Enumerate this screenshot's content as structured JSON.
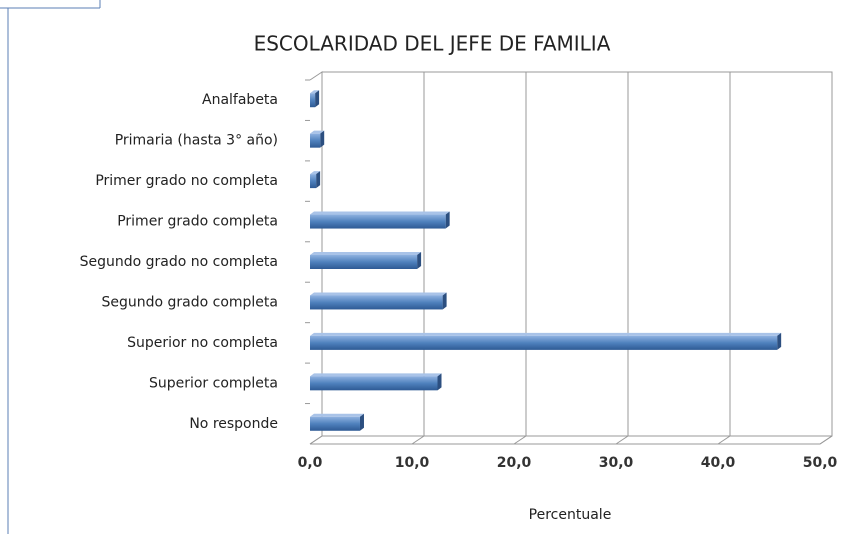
{
  "chart_data": {
    "type": "bar",
    "orientation": "horizontal",
    "title": "ESCOLARIDAD DEL JEFE DE FAMILIA",
    "categories": [
      "Analfabeta",
      "Primaria (hasta 3° año)",
      "Primer grado no completa",
      "Primer grado completa",
      "Segundo grado no completa",
      "Segundo grado completa",
      "Superior no completa",
      "Superior completa",
      "No responde"
    ],
    "values": [
      0.5,
      1.0,
      0.6,
      13.3,
      10.5,
      13.0,
      45.8,
      12.5,
      4.9
    ],
    "color": "#4f81bd",
    "xlim": [
      0,
      50
    ],
    "xticks": [
      {
        "value": 0,
        "label": "0,0"
      },
      {
        "value": 10,
        "label": "10,0"
      },
      {
        "value": 20,
        "label": "20,0"
      },
      {
        "value": 30,
        "label": "30,0"
      },
      {
        "value": 40,
        "label": "40,0"
      },
      {
        "value": 50,
        "label": "50,0"
      }
    ],
    "xlabel": "Percentuale",
    "grid": true
  }
}
